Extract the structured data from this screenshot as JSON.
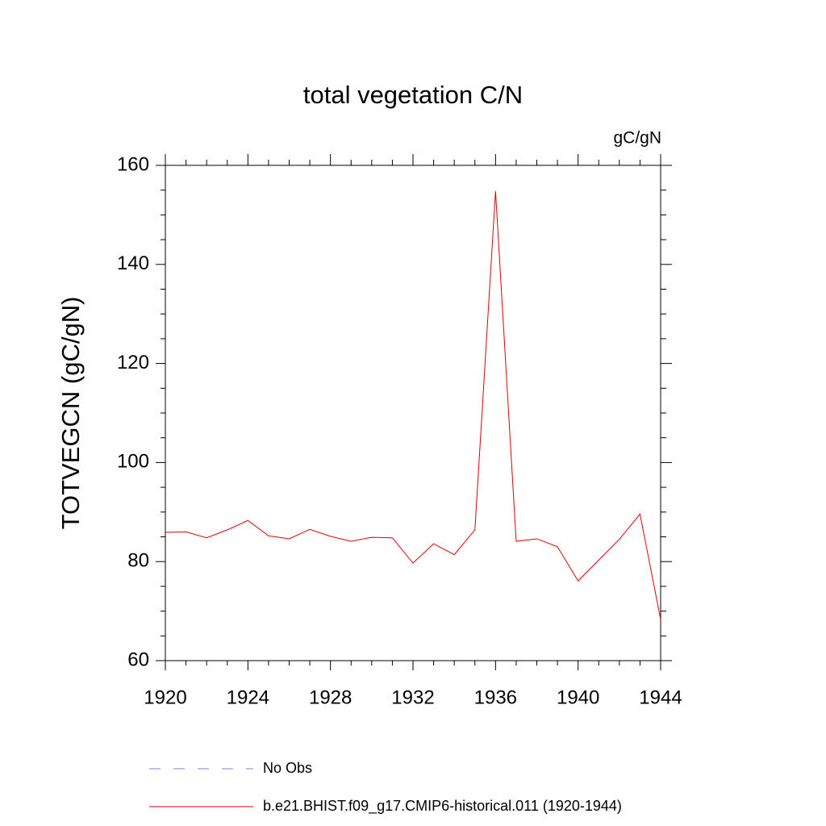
{
  "chart_data": {
    "type": "line",
    "title": "total vegetation C/N",
    "units": "gC/gN",
    "y_label": "TOTVEGCN  (gC/gN)",
    "x": [
      1920,
      1921,
      1922,
      1923,
      1924,
      1925,
      1926,
      1927,
      1928,
      1929,
      1930,
      1931,
      1932,
      1933,
      1934,
      1935,
      1936,
      1937,
      1938,
      1939,
      1940,
      1941,
      1942,
      1943,
      1944
    ],
    "series": [
      {
        "name": "No Obs",
        "color": "#8080c8",
        "dashed": true,
        "values": [
          null,
          null,
          null,
          null,
          null,
          null,
          null,
          null,
          null,
          null,
          null,
          null,
          null,
          null,
          null,
          null,
          null,
          null,
          null,
          null,
          null,
          null,
          null,
          null,
          null
        ]
      },
      {
        "name": "b.e21.BHIST.f09_g17.CMIP6-historical.011 (1920-1944)",
        "color": "#e00000",
        "dashed": false,
        "values": [
          85.9,
          86.0,
          84.8,
          86.4,
          88.3,
          85.2,
          84.6,
          86.5,
          85.1,
          84.1,
          84.9,
          84.8,
          79.7,
          83.6,
          81.4,
          86.4,
          154.8,
          84.1,
          84.6,
          83.0,
          76.1,
          80.3,
          84.5,
          89.6,
          68.3
        ]
      }
    ],
    "xlim": [
      1920,
      1944
    ],
    "xticks": [
      1920,
      1924,
      1928,
      1932,
      1936,
      1940,
      1944
    ],
    "xminorticks": [
      1921,
      1922,
      1923,
      1925,
      1926,
      1927,
      1929,
      1930,
      1931,
      1933,
      1934,
      1935,
      1937,
      1938,
      1939,
      1941,
      1942,
      1943
    ],
    "ylim": [
      60,
      160
    ],
    "yticks": [
      60,
      80,
      100,
      120,
      140,
      160
    ],
    "yminorticks": [
      65,
      70,
      75,
      85,
      90,
      95,
      105,
      110,
      115,
      125,
      130,
      135,
      145,
      150,
      155
    ],
    "grid": false
  }
}
